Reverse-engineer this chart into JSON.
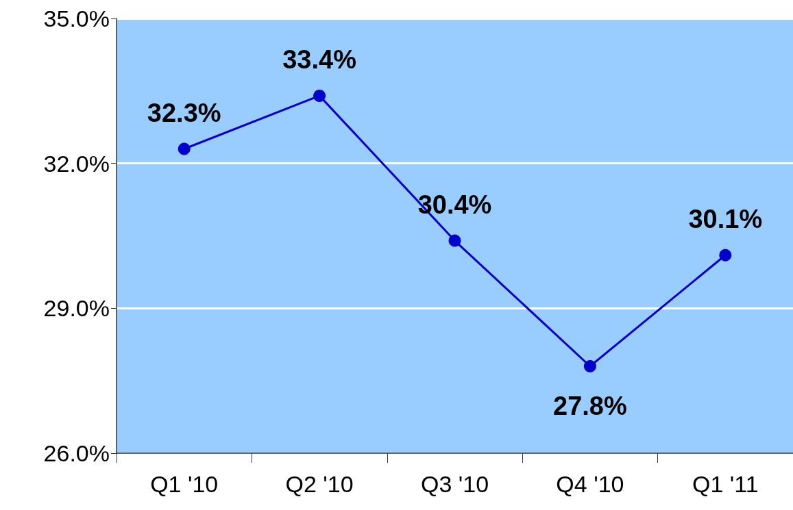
{
  "chart_data": {
    "type": "line",
    "categories": [
      "Q1 '10",
      "Q2 '10",
      "Q3 '10",
      "Q4 '10",
      "Q1 '11"
    ],
    "series": [
      {
        "color": "#0000cc",
        "values": [
          32.3,
          33.4,
          30.4,
          27.8,
          30.1
        ]
      }
    ],
    "value_labels": [
      "32.3%",
      "33.4%",
      "30.4%",
      "27.8%",
      "30.1%"
    ],
    "ylim": [
      26,
      35
    ],
    "yticks": [
      {
        "value": 26,
        "label": "26.0%"
      },
      {
        "value": 29,
        "label": "29.0%"
      },
      {
        "value": 32,
        "label": "32.0%"
      },
      {
        "value": 35,
        "label": "35.0%"
      }
    ],
    "grid": "y",
    "marker": "circle",
    "line_style": "solid"
  }
}
